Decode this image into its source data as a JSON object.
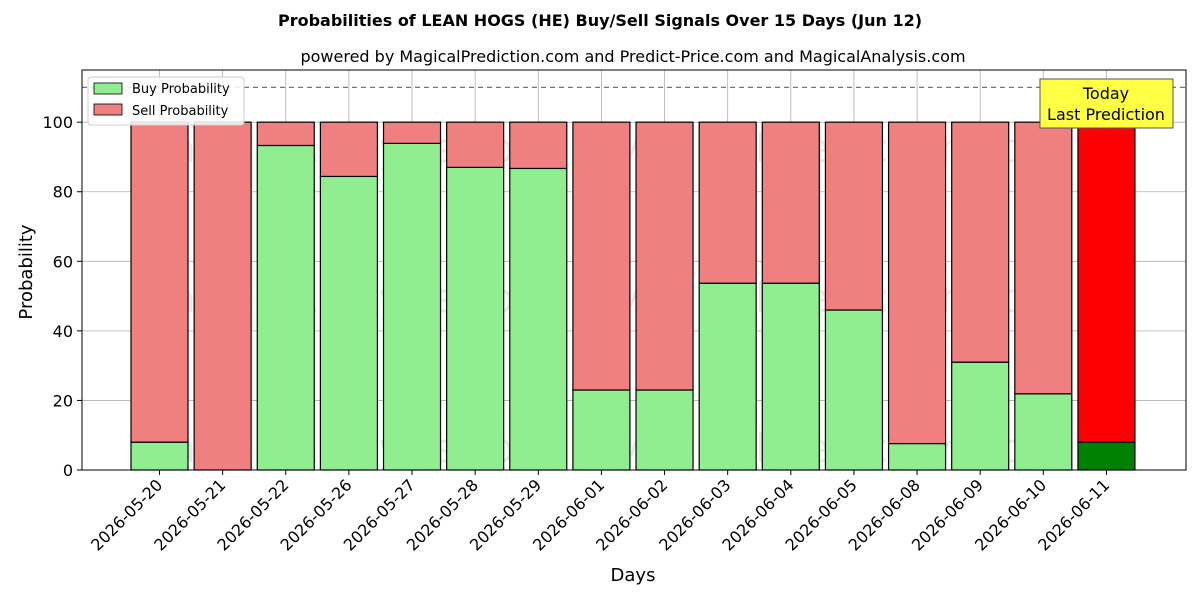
{
  "chart_data": {
    "type": "bar",
    "stacked": true,
    "title": "Probabilities of LEAN HOGS (HE) Buy/Sell Signals Over 15 Days (Jun 12)",
    "subtitle": "powered by MagicalPrediction.com and Predict-Price.com and MagicalAnalysis.com",
    "xlabel": "Days",
    "ylabel": "Probability",
    "ylim": [
      0,
      115
    ],
    "yticks": [
      0,
      20,
      40,
      60,
      80,
      100
    ],
    "grid": true,
    "legend_position": "top-left",
    "reference_line": 110,
    "categories": [
      "2026-05-20",
      "2026-05-21",
      "2026-05-22",
      "2026-05-26",
      "2026-05-27",
      "2026-05-28",
      "2026-05-29",
      "2026-06-01",
      "2026-06-02",
      "2026-06-03",
      "2026-06-04",
      "2026-06-05",
      "2026-06-08",
      "2026-06-09",
      "2026-06-10",
      "2026-06-11"
    ],
    "series": [
      {
        "name": "Buy Probability",
        "color": "#90ee90",
        "values": [
          8,
          0,
          93.3,
          84.4,
          93.9,
          87,
          86.7,
          23,
          23,
          53.7,
          53.7,
          46,
          7.6,
          31,
          21.9,
          8
        ]
      },
      {
        "name": "Sell Probability",
        "color": "#f08080",
        "values": [
          92,
          100,
          6.7,
          15.6,
          6.1,
          13,
          13.3,
          77,
          77,
          46.3,
          46.3,
          54,
          92.4,
          69,
          78.1,
          92
        ]
      }
    ],
    "highlight": {
      "category": "2026-06-11",
      "buy_color": "#008000",
      "sell_color": "#ff0000"
    },
    "annotation": {
      "line1": "Today",
      "line2": "Last Prediction",
      "background": "#ffff44"
    },
    "watermarks": [
      "MagicalAnalysis.com",
      "MagicalPrediction.com"
    ]
  }
}
